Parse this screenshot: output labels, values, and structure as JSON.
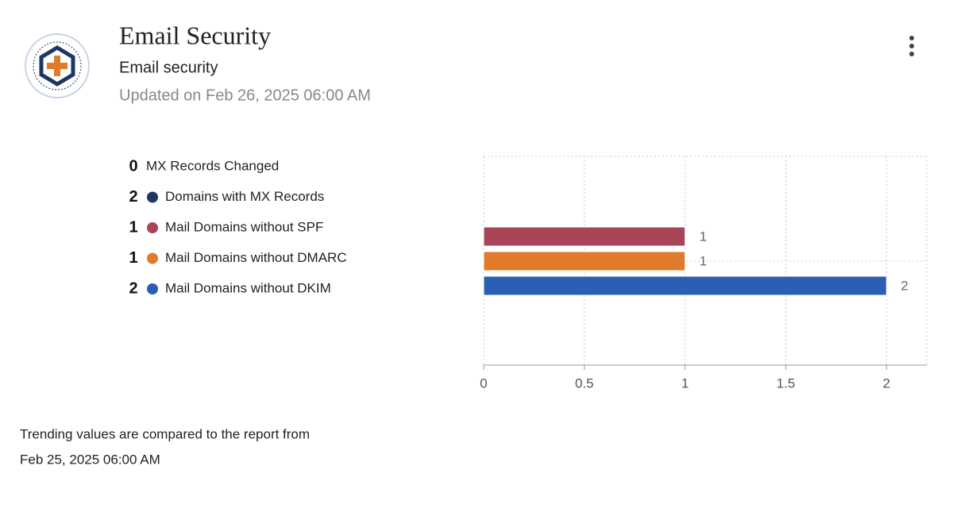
{
  "header": {
    "title": "Email Security",
    "subtitle": "Email security",
    "updated": "Updated on Feb 26, 2025 06:00 AM"
  },
  "summary": {
    "items": [
      {
        "count": 0,
        "label": "MX Records Changed"
      },
      {
        "count": 2,
        "label": "Domains with MX Records",
        "color": "#1f3566"
      },
      {
        "count": 1,
        "label": "Mail Domains without SPF",
        "color": "#a84657"
      },
      {
        "count": 1,
        "label": "Mail Domains without DMARC",
        "color": "#e07b2c"
      },
      {
        "count": 2,
        "label": "Mail Domains without DKIM",
        "color": "#2b5fb4"
      }
    ]
  },
  "chart_data": {
    "type": "bar",
    "orientation": "horizontal",
    "values": [
      1,
      1,
      2
    ],
    "colors": [
      "#a84657",
      "#e07b2c",
      "#2b5fb4"
    ],
    "xlim": [
      0,
      2.2
    ],
    "xticks": [
      0,
      0.5,
      1,
      1.5,
      2
    ],
    "grid": true
  },
  "footer": {
    "line1": "Trending values are compared to the report from",
    "line2": "Feb 25, 2025 06:00 AM"
  }
}
